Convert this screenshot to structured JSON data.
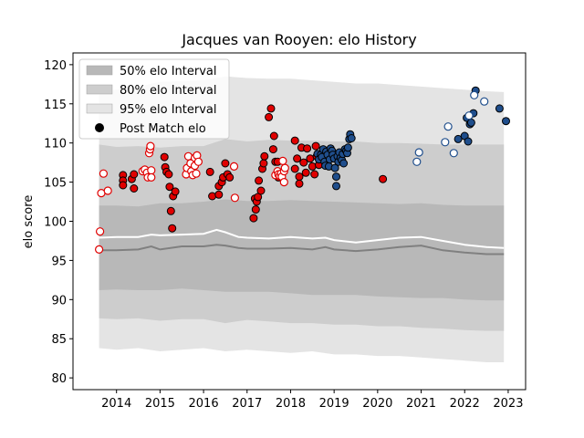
{
  "chart_data": {
    "type": "scatter",
    "title": "Jacques van Rooyen: elo History",
    "xlabel": "",
    "ylabel": "elo score",
    "xlim": [
      2013.0,
      2023.4
    ],
    "ylim": [
      78.5,
      121.5
    ],
    "x_ticks": [
      "2014",
      "2015",
      "2016",
      "2017",
      "2018",
      "2019",
      "2020",
      "2021",
      "2022",
      "2023"
    ],
    "y_ticks": [
      "80",
      "85",
      "90",
      "95",
      "100",
      "105",
      "110",
      "115",
      "120"
    ],
    "grid": false,
    "legend_position": "top-left",
    "legend": [
      {
        "label": "50% elo Interval",
        "kind": "band",
        "color": "#b8b8b8"
      },
      {
        "label": "80% elo Interval",
        "kind": "band",
        "color": "#cdcdcd"
      },
      {
        "label": "95% elo Interval",
        "kind": "band",
        "color": "#e4e4e4"
      },
      {
        "label": "Post Match elo",
        "kind": "marker",
        "color": "#000000"
      }
    ],
    "colors": {
      "band95": "#e4e4e4",
      "band80": "#cdcdcd",
      "band50": "#b8b8b8",
      "median_line": "#808080",
      "mean_line": "#ffffff",
      "red": "#e00000",
      "blue": "#1f4e8c",
      "edge_dark": "#000000",
      "edge_white": "#ffffff"
    },
    "bands": {
      "x": [
        2013.6,
        2014.0,
        2014.5,
        2015.0,
        2015.5,
        2016.0,
        2016.5,
        2017.0,
        2017.5,
        2018.0,
        2018.5,
        2019.0,
        2019.5,
        2020.0,
        2020.5,
        2021.0,
        2021.5,
        2022.0,
        2022.5,
        2022.9
      ],
      "p95_low": [
        83.8,
        83.6,
        83.8,
        83.4,
        83.6,
        83.8,
        83.4,
        83.6,
        83.4,
        83.2,
        83.4,
        83.0,
        83.0,
        82.8,
        82.8,
        82.6,
        82.4,
        82.2,
        82.0,
        82.0
      ],
      "p95_high": [
        116.5,
        116.8,
        117.2,
        117.8,
        117.9,
        118.0,
        118.5,
        118.3,
        118.2,
        118.2,
        118.0,
        117.8,
        117.6,
        117.6,
        117.4,
        117.2,
        117.0,
        116.8,
        116.6,
        116.5
      ],
      "p80_low": [
        87.6,
        87.5,
        87.6,
        87.3,
        87.5,
        87.5,
        87.0,
        87.4,
        87.2,
        87.0,
        87.0,
        86.8,
        86.8,
        86.6,
        86.6,
        86.4,
        86.3,
        86.1,
        86.0,
        86.0
      ],
      "p80_high": [
        109.8,
        109.5,
        109.6,
        109.4,
        109.6,
        109.6,
        110.5,
        110.2,
        110.4,
        110.3,
        110.3,
        110.2,
        110.2,
        110.0,
        110.0,
        109.9,
        109.8,
        109.8,
        109.8,
        109.8
      ],
      "p50_low": [
        91.2,
        91.3,
        91.2,
        91.2,
        91.4,
        91.2,
        91.0,
        91.0,
        91.0,
        90.8,
        90.6,
        90.6,
        90.6,
        90.4,
        90.3,
        90.2,
        90.2,
        90.0,
        89.9,
        89.9
      ],
      "p50_high": [
        102.0,
        102.0,
        101.9,
        102.3,
        102.3,
        102.5,
        102.8,
        102.6,
        102.6,
        102.7,
        102.6,
        102.5,
        102.4,
        102.3,
        102.2,
        102.3,
        102.1,
        102.0,
        102.0,
        102.0
      ]
    },
    "median_line": {
      "x": [
        2013.6,
        2014.0,
        2014.5,
        2014.8,
        2015.0,
        2015.5,
        2016.0,
        2016.3,
        2016.5,
        2016.8,
        2017.0,
        2017.5,
        2018.0,
        2018.5,
        2018.8,
        2019.0,
        2019.5,
        2020.0,
        2020.5,
        2021.0,
        2021.5,
        2022.0,
        2022.5,
        2022.9
      ],
      "y": [
        96.3,
        96.3,
        96.4,
        96.8,
        96.4,
        96.8,
        96.8,
        97.0,
        96.9,
        96.6,
        96.5,
        96.5,
        96.6,
        96.4,
        96.7,
        96.4,
        96.2,
        96.4,
        96.7,
        96.9,
        96.3,
        96.0,
        95.8,
        95.8
      ]
    },
    "mean_line": {
      "x": [
        2013.6,
        2014.0,
        2014.5,
        2014.8,
        2015.0,
        2015.5,
        2016.0,
        2016.3,
        2016.5,
        2016.8,
        2017.0,
        2017.5,
        2018.0,
        2018.5,
        2018.8,
        2019.0,
        2019.5,
        2020.0,
        2020.5,
        2021.0,
        2021.5,
        2022.0,
        2022.5,
        2022.9
      ],
      "y": [
        97.9,
        98.0,
        98.0,
        98.3,
        98.2,
        98.3,
        98.4,
        98.9,
        98.6,
        98.0,
        97.9,
        97.8,
        98.0,
        97.8,
        97.9,
        97.6,
        97.3,
        97.6,
        97.9,
        98.0,
        97.5,
        97.0,
        96.7,
        96.6
      ]
    },
    "series": [
      {
        "color": "red",
        "filled": true,
        "points": [
          [
            2014.15,
            105.9
          ],
          [
            2014.15,
            105.2
          ],
          [
            2014.15,
            104.6
          ],
          [
            2014.35,
            105.4
          ],
          [
            2014.4,
            104.2
          ],
          [
            2014.4,
            106.0
          ],
          [
            2015.1,
            108.2
          ],
          [
            2015.12,
            106.9
          ],
          [
            2015.15,
            106.3
          ],
          [
            2015.2,
            106.0
          ],
          [
            2015.22,
            104.4
          ],
          [
            2015.25,
            101.3
          ],
          [
            2015.28,
            99.1
          ],
          [
            2015.3,
            103.2
          ],
          [
            2015.35,
            103.8
          ],
          [
            2016.15,
            106.3
          ],
          [
            2016.2,
            103.2
          ],
          [
            2016.35,
            103.4
          ],
          [
            2016.35,
            104.5
          ],
          [
            2016.42,
            105.0
          ],
          [
            2016.45,
            105.6
          ],
          [
            2016.5,
            107.4
          ],
          [
            2016.55,
            106.0
          ],
          [
            2016.6,
            105.6
          ],
          [
            2017.15,
            100.4
          ],
          [
            2017.18,
            102.9
          ],
          [
            2017.2,
            101.5
          ],
          [
            2017.22,
            102.5
          ],
          [
            2017.25,
            103.1
          ],
          [
            2017.27,
            105.2
          ],
          [
            2017.32,
            103.9
          ],
          [
            2017.35,
            106.7
          ],
          [
            2017.38,
            107.4
          ],
          [
            2017.4,
            108.3
          ],
          [
            2017.5,
            113.3
          ],
          [
            2017.55,
            114.4
          ],
          [
            2017.6,
            109.2
          ],
          [
            2017.62,
            110.9
          ],
          [
            2017.65,
            107.6
          ],
          [
            2017.7,
            107.6
          ],
          [
            2017.72,
            105.6
          ],
          [
            2018.1,
            110.3
          ],
          [
            2018.1,
            106.7
          ],
          [
            2018.15,
            108.0
          ],
          [
            2018.2,
            105.7
          ],
          [
            2018.2,
            104.8
          ],
          [
            2018.25,
            109.4
          ],
          [
            2018.3,
            107.5
          ],
          [
            2018.35,
            106.2
          ],
          [
            2018.38,
            109.3
          ],
          [
            2018.45,
            108.0
          ],
          [
            2018.5,
            107.0
          ],
          [
            2018.55,
            106.0
          ],
          [
            2018.58,
            109.6
          ],
          [
            2018.6,
            108.3
          ],
          [
            2018.65,
            107.2
          ],
          [
            2020.12,
            105.4
          ]
        ]
      },
      {
        "color": "red",
        "filled": false,
        "points": [
          [
            2013.6,
            96.4
          ],
          [
            2013.62,
            98.7
          ],
          [
            2013.65,
            103.6
          ],
          [
            2013.7,
            106.1
          ],
          [
            2013.8,
            103.9
          ],
          [
            2014.6,
            106.4
          ],
          [
            2014.65,
            106.6
          ],
          [
            2014.7,
            106.2
          ],
          [
            2014.72,
            105.6
          ],
          [
            2014.75,
            108.7
          ],
          [
            2014.77,
            109.2
          ],
          [
            2014.78,
            109.6
          ],
          [
            2014.8,
            106.5
          ],
          [
            2014.8,
            105.6
          ],
          [
            2015.6,
            106.0
          ],
          [
            2015.62,
            106.8
          ],
          [
            2015.65,
            108.3
          ],
          [
            2015.7,
            107.4
          ],
          [
            2015.72,
            106.4
          ],
          [
            2015.75,
            105.9
          ],
          [
            2015.8,
            108.1
          ],
          [
            2015.8,
            107.1
          ],
          [
            2015.83,
            106.1
          ],
          [
            2015.85,
            108.4
          ],
          [
            2015.88,
            107.6
          ],
          [
            2016.7,
            107.0
          ],
          [
            2016.72,
            103.0
          ],
          [
            2017.65,
            105.9
          ],
          [
            2017.7,
            106.4
          ],
          [
            2017.72,
            106.0
          ],
          [
            2017.75,
            105.8
          ],
          [
            2017.78,
            106.1
          ],
          [
            2017.8,
            105.7
          ],
          [
            2017.82,
            107.7
          ],
          [
            2017.85,
            106.4
          ],
          [
            2017.85,
            105.0
          ],
          [
            2017.87,
            106.8
          ]
        ]
      },
      {
        "color": "blue",
        "filled": true,
        "points": [
          [
            2018.62,
            108.6
          ],
          [
            2018.65,
            107.9
          ],
          [
            2018.7,
            108.5
          ],
          [
            2018.72,
            108.2
          ],
          [
            2018.75,
            109.2
          ],
          [
            2018.78,
            107.6
          ],
          [
            2018.8,
            107.1
          ],
          [
            2018.82,
            108.9
          ],
          [
            2018.85,
            108.5
          ],
          [
            2018.88,
            107.0
          ],
          [
            2018.9,
            107.9
          ],
          [
            2018.92,
            109.3
          ],
          [
            2018.95,
            109.0
          ],
          [
            2018.97,
            108.5
          ],
          [
            2019.0,
            108.0
          ],
          [
            2019.02,
            106.8
          ],
          [
            2019.05,
            105.7
          ],
          [
            2019.05,
            104.5
          ],
          [
            2019.08,
            108.3
          ],
          [
            2019.1,
            107.6
          ],
          [
            2019.12,
            108.8
          ],
          [
            2019.15,
            108.1
          ],
          [
            2019.18,
            107.8
          ],
          [
            2019.2,
            108.6
          ],
          [
            2019.22,
            107.4
          ],
          [
            2019.25,
            109.2
          ],
          [
            2019.28,
            109.0
          ],
          [
            2019.3,
            108.7
          ],
          [
            2019.32,
            109.4
          ],
          [
            2019.35,
            110.5
          ],
          [
            2019.37,
            111.1
          ],
          [
            2019.4,
            110.6
          ],
          [
            2021.85,
            110.5
          ],
          [
            2022.0,
            110.9
          ],
          [
            2022.05,
            113.2
          ],
          [
            2022.08,
            110.2
          ],
          [
            2022.12,
            112.4
          ],
          [
            2022.15,
            112.6
          ],
          [
            2022.2,
            113.8
          ],
          [
            2022.25,
            116.7
          ],
          [
            2022.8,
            114.4
          ],
          [
            2022.95,
            112.8
          ]
        ]
      },
      {
        "color": "blue",
        "filled": false,
        "points": [
          [
            2020.9,
            107.6
          ],
          [
            2020.95,
            108.8
          ],
          [
            2021.55,
            110.1
          ],
          [
            2021.62,
            112.1
          ],
          [
            2021.75,
            108.7
          ],
          [
            2022.1,
            113.5
          ],
          [
            2022.22,
            116.1
          ],
          [
            2022.45,
            115.3
          ]
        ]
      }
    ]
  }
}
